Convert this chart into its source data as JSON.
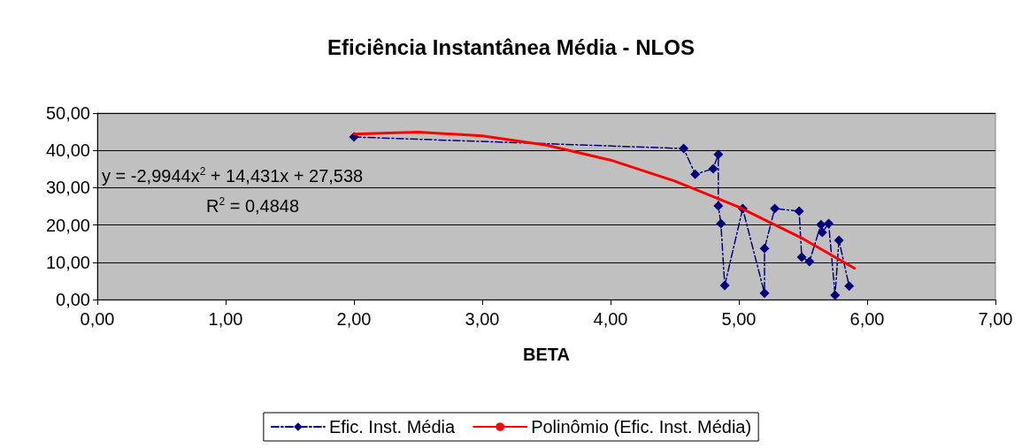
{
  "chart_data": {
    "type": "line",
    "title": "Eficiência Instantânea Média - NLOS",
    "xlabel": "BETA",
    "xlim": [
      0,
      7
    ],
    "xticks": [
      {
        "value": 0,
        "label": "0,00"
      },
      {
        "value": 1,
        "label": "1,00"
      },
      {
        "value": 2,
        "label": "2,00"
      },
      {
        "value": 3,
        "label": "3,00"
      },
      {
        "value": 4,
        "label": "4,00"
      },
      {
        "value": 5,
        "label": "5,00"
      },
      {
        "value": 6,
        "label": "6,00"
      },
      {
        "value": 7,
        "label": "7,00"
      }
    ],
    "ylim": [
      0,
      50
    ],
    "yticks": [
      {
        "value": 0,
        "label": "0,00"
      },
      {
        "value": 10,
        "label": "10,00"
      },
      {
        "value": 20,
        "label": "20,00"
      },
      {
        "value": 30,
        "label": "30,00"
      },
      {
        "value": 40,
        "label": "40,00"
      },
      {
        "value": 50,
        "label": "50,00"
      }
    ],
    "grid": "y",
    "legend": "bottom",
    "series": [
      {
        "name": "Efic. Inst. Média",
        "color": "#000080",
        "marker": "diamond",
        "line_style": "dashed",
        "x": [
          2.0,
          4.57,
          4.66,
          4.8,
          4.84,
          4.84,
          4.86,
          4.89,
          5.03,
          5.2,
          5.2,
          5.28,
          5.47,
          5.49,
          5.55,
          5.64,
          5.65,
          5.7,
          5.75,
          5.78,
          5.86
        ],
        "values": [
          43.6,
          40.5,
          33.6,
          35.1,
          38.9,
          25.1,
          20.4,
          3.8,
          24.4,
          1.7,
          13.7,
          24.4,
          23.7,
          11.4,
          10.2,
          20.1,
          18.0,
          20.4,
          1.2,
          15.9,
          3.6
        ]
      },
      {
        "name": "Polinômio (Efic. Inst. Média)",
        "color": "#ff0000",
        "marker": "none",
        "line_style": "solid",
        "x": [
          2.0,
          2.5,
          3.0,
          3.5,
          4.0,
          4.5,
          5.0,
          5.5,
          5.9
        ],
        "values": [
          44.4,
          44.9,
          43.9,
          41.4,
          37.4,
          31.8,
          24.8,
          16.3,
          8.4
        ]
      }
    ],
    "annotations": [
      "y = -2,9944x$^{2}$ + 14,431x + 27,538",
      "R$^{2}$ = 0,4848"
    ]
  }
}
